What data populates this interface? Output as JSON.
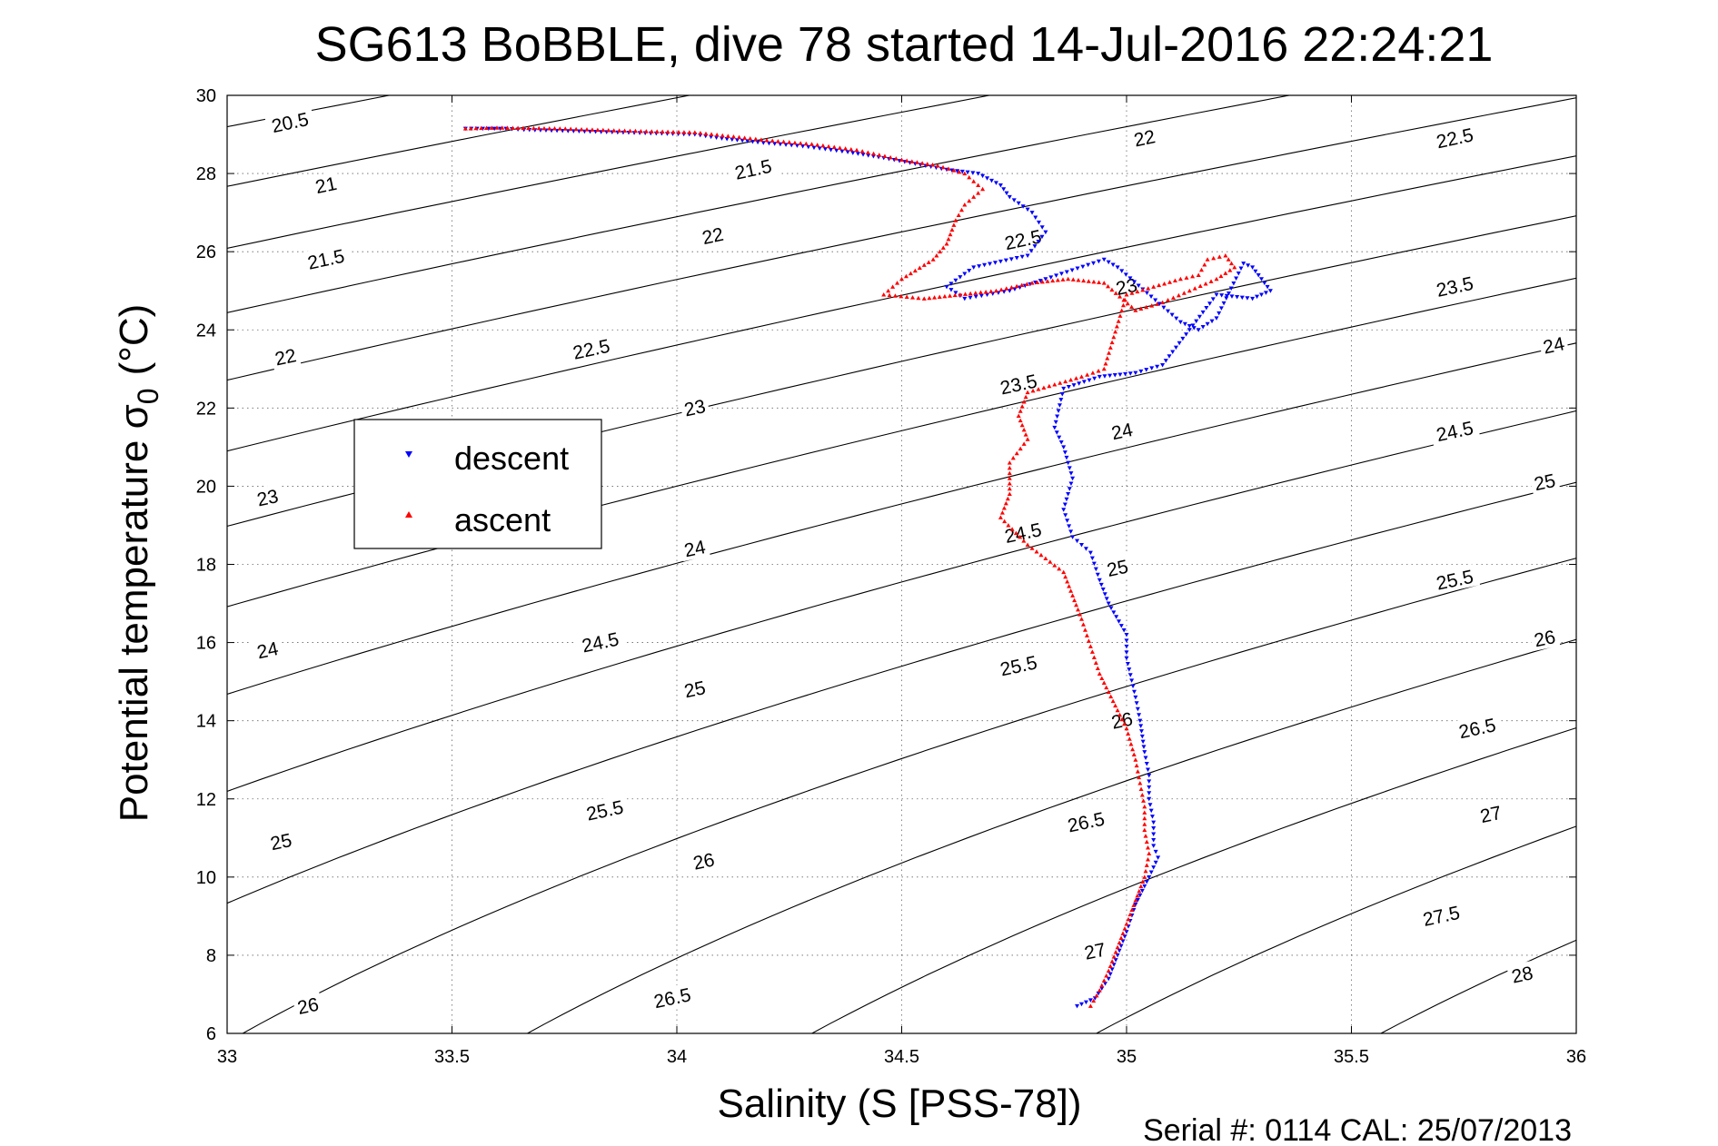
{
  "chart_data": {
    "type": "scatter",
    "title": "SG613 BoBBLE, dive 78 started 14-Jul-2016 22:24:21",
    "xlabel": "Salinity (S [PSS-78])",
    "ylabel_main": "Potential temperature σ",
    "ylabel_sub": "0",
    "ylabel_unit": "(°C)",
    "xlim": [
      33,
      36
    ],
    "ylim": [
      6,
      30
    ],
    "xticks": [
      "33",
      "33.5",
      "34",
      "34.5",
      "35",
      "35.5",
      "36"
    ],
    "yticks": [
      "6",
      "8",
      "10",
      "12",
      "14",
      "16",
      "18",
      "20",
      "22",
      "24",
      "26",
      "28",
      "30"
    ],
    "grid": true,
    "legend_position": "left",
    "footer": "Serial #: 0114  CAL: 25/07/2013",
    "density_contours": [
      20.5,
      21,
      21.5,
      22,
      22.5,
      23,
      23.5,
      24,
      24.5,
      25,
      25.5,
      26,
      26.5,
      27,
      27.5,
      28
    ],
    "contour_labels": [
      {
        "text": "20.5",
        "s": 33.14,
        "t": 29.3
      },
      {
        "text": "21",
        "s": 33.22,
        "t": 27.7
      },
      {
        "text": "21.5",
        "s": 33.22,
        "t": 25.8
      },
      {
        "text": "22",
        "s": 33.13,
        "t": 23.3
      },
      {
        "text": "23",
        "s": 33.09,
        "t": 19.7
      },
      {
        "text": "24",
        "s": 33.09,
        "t": 15.8
      },
      {
        "text": "25",
        "s": 33.12,
        "t": 10.9
      },
      {
        "text": "26",
        "s": 33.18,
        "t": 6.7
      },
      {
        "text": "21.5",
        "s": 34.17,
        "t": 28.1
      },
      {
        "text": "22",
        "s": 34.08,
        "t": 26.4
      },
      {
        "text": "22.5",
        "s": 33.81,
        "t": 23.5
      },
      {
        "text": "23",
        "s": 34.04,
        "t": 22.0
      },
      {
        "text": "24",
        "s": 34.04,
        "t": 18.4
      },
      {
        "text": "24.5",
        "s": 33.83,
        "t": 16.0
      },
      {
        "text": "25",
        "s": 34.04,
        "t": 14.8
      },
      {
        "text": "25.5",
        "s": 33.84,
        "t": 11.7
      },
      {
        "text": "26",
        "s": 34.06,
        "t": 10.4
      },
      {
        "text": "26.5",
        "s": 33.99,
        "t": 6.9
      },
      {
        "text": "22",
        "s": 35.04,
        "t": 28.9
      },
      {
        "text": "22.5",
        "s": 34.77,
        "t": 26.3
      },
      {
        "text": "23",
        "s": 35.0,
        "t": 25.1
      },
      {
        "text": "23.5",
        "s": 34.76,
        "t": 22.6
      },
      {
        "text": "24",
        "s": 34.99,
        "t": 21.4
      },
      {
        "text": "24.5",
        "s": 34.77,
        "t": 18.8
      },
      {
        "text": "25",
        "s": 34.98,
        "t": 17.9
      },
      {
        "text": "25.5",
        "s": 34.76,
        "t": 15.4
      },
      {
        "text": "26",
        "s": 34.99,
        "t": 14.0
      },
      {
        "text": "26.5",
        "s": 34.91,
        "t": 11.4
      },
      {
        "text": "27",
        "s": 34.93,
        "t": 8.1
      },
      {
        "text": "22.5",
        "s": 35.73,
        "t": 28.9
      },
      {
        "text": "23.5",
        "s": 35.73,
        "t": 25.1
      },
      {
        "text": "24",
        "s": 35.95,
        "t": 23.6
      },
      {
        "text": "24.5",
        "s": 35.73,
        "t": 21.4
      },
      {
        "text": "25",
        "s": 35.93,
        "t": 20.1
      },
      {
        "text": "25.5",
        "s": 35.73,
        "t": 17.6
      },
      {
        "text": "26",
        "s": 35.93,
        "t": 16.1
      },
      {
        "text": "26.5",
        "s": 35.78,
        "t": 13.8
      },
      {
        "text": "27",
        "s": 35.81,
        "t": 11.6
      },
      {
        "text": "27.5",
        "s": 35.7,
        "t": 9.0
      },
      {
        "text": "28",
        "s": 35.88,
        "t": 7.5
      }
    ],
    "series": [
      {
        "name": "descent",
        "color": "#0000ff",
        "marker": "triangle-down",
        "points": [
          [
            33.53,
            29.15
          ],
          [
            33.62,
            29.15
          ],
          [
            33.66,
            29.12
          ],
          [
            34.04,
            29.0
          ],
          [
            34.1,
            28.9
          ],
          [
            34.18,
            28.8
          ],
          [
            34.28,
            28.7
          ],
          [
            34.38,
            28.55
          ],
          [
            34.46,
            28.4
          ],
          [
            34.53,
            28.25
          ],
          [
            34.6,
            28.1
          ],
          [
            34.67,
            28.0
          ],
          [
            34.72,
            27.7
          ],
          [
            34.74,
            27.4
          ],
          [
            34.79,
            27.0
          ],
          [
            34.82,
            26.5
          ],
          [
            34.78,
            25.9
          ],
          [
            34.66,
            25.6
          ],
          [
            34.6,
            25.1
          ],
          [
            34.64,
            24.8
          ],
          [
            34.74,
            25.0
          ],
          [
            34.82,
            25.3
          ],
          [
            34.95,
            25.8
          ],
          [
            34.98,
            25.6
          ],
          [
            35.12,
            24.2
          ],
          [
            35.16,
            24.0
          ],
          [
            35.2,
            24.3
          ],
          [
            35.26,
            25.7
          ],
          [
            35.28,
            25.6
          ],
          [
            35.3,
            25.3
          ],
          [
            35.32,
            25.0
          ],
          [
            35.28,
            24.8
          ],
          [
            35.2,
            24.9
          ],
          [
            35.08,
            23.1
          ],
          [
            35.02,
            22.9
          ],
          [
            34.94,
            22.8
          ],
          [
            34.86,
            22.5
          ],
          [
            34.84,
            21.5
          ],
          [
            34.86,
            21.0
          ],
          [
            34.88,
            20.2
          ],
          [
            34.86,
            19.4
          ],
          [
            34.88,
            18.7
          ],
          [
            34.92,
            18.3
          ],
          [
            34.94,
            17.6
          ],
          [
            34.96,
            17.0
          ],
          [
            35.0,
            16.2
          ],
          [
            35.0,
            15.6
          ],
          [
            35.02,
            14.6
          ],
          [
            35.03,
            14.0
          ],
          [
            35.04,
            13.2
          ],
          [
            35.05,
            12.6
          ],
          [
            35.05,
            12.0
          ],
          [
            35.06,
            11.4
          ],
          [
            35.06,
            10.8
          ],
          [
            35.07,
            10.5
          ],
          [
            35.05,
            10.0
          ],
          [
            35.02,
            9.3
          ],
          [
            35.0,
            8.6
          ],
          [
            34.98,
            8.0
          ],
          [
            34.96,
            7.4
          ],
          [
            34.93,
            6.9
          ],
          [
            34.89,
            6.7
          ]
        ]
      },
      {
        "name": "ascent",
        "color": "#ff0000",
        "marker": "triangle-up",
        "points": [
          [
            33.53,
            29.15
          ],
          [
            33.6,
            29.17
          ],
          [
            33.74,
            29.15
          ],
          [
            33.86,
            29.1
          ],
          [
            34.04,
            29.05
          ],
          [
            34.2,
            28.85
          ],
          [
            34.3,
            28.75
          ],
          [
            34.4,
            28.6
          ],
          [
            34.5,
            28.35
          ],
          [
            34.58,
            28.2
          ],
          [
            34.64,
            28.0
          ],
          [
            34.68,
            27.6
          ],
          [
            34.64,
            27.2
          ],
          [
            34.62,
            26.8
          ],
          [
            34.6,
            26.2
          ],
          [
            34.57,
            25.8
          ],
          [
            34.5,
            25.3
          ],
          [
            34.46,
            24.9
          ],
          [
            34.55,
            24.8
          ],
          [
            34.63,
            24.9
          ],
          [
            34.71,
            25.0
          ],
          [
            34.79,
            25.2
          ],
          [
            34.87,
            25.3
          ],
          [
            34.95,
            25.2
          ],
          [
            35.02,
            24.5
          ],
          [
            35.08,
            24.7
          ],
          [
            35.14,
            25.0
          ],
          [
            35.2,
            25.3
          ],
          [
            35.24,
            25.6
          ],
          [
            35.22,
            25.9
          ],
          [
            35.18,
            25.8
          ],
          [
            35.16,
            25.4
          ],
          [
            35.12,
            25.3
          ],
          [
            35.06,
            25.1
          ],
          [
            35.0,
            24.9
          ],
          [
            34.95,
            23.0
          ],
          [
            34.9,
            22.8
          ],
          [
            34.84,
            22.6
          ],
          [
            34.78,
            22.4
          ],
          [
            34.76,
            21.8
          ],
          [
            34.78,
            21.2
          ],
          [
            34.74,
            20.6
          ],
          [
            34.74,
            19.8
          ],
          [
            34.72,
            19.2
          ],
          [
            34.78,
            18.5
          ],
          [
            34.86,
            17.8
          ],
          [
            34.88,
            17.2
          ],
          [
            34.9,
            16.6
          ],
          [
            34.92,
            15.9
          ],
          [
            34.94,
            15.2
          ],
          [
            34.97,
            14.5
          ],
          [
            35.0,
            13.8
          ],
          [
            35.02,
            13.0
          ],
          [
            35.03,
            12.4
          ],
          [
            35.04,
            11.8
          ],
          [
            35.04,
            11.2
          ],
          [
            35.05,
            10.6
          ],
          [
            35.04,
            10.0
          ],
          [
            35.02,
            9.4
          ],
          [
            35.0,
            8.8
          ],
          [
            34.98,
            8.2
          ],
          [
            34.96,
            7.6
          ],
          [
            34.94,
            7.1
          ],
          [
            34.92,
            6.7
          ]
        ]
      }
    ]
  }
}
